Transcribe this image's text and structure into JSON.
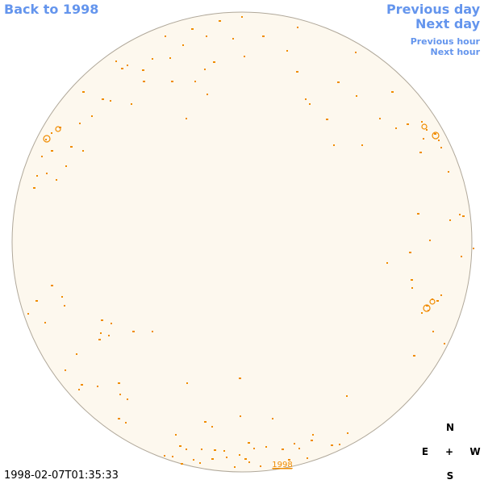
{
  "nav": {
    "back_label": "Back to 1998",
    "prev_day": "Previous day",
    "next_day": "Next day",
    "prev_hour": "Previous hour",
    "next_hour": "Next hour"
  },
  "disk": {
    "fill_color": "#fdf8ee",
    "stroke_color": "#b0a89a",
    "mark_color": "#f08c00",
    "year_label": "1998"
  },
  "compass": {
    "north": "N",
    "south": "S",
    "east": "E",
    "west": "W",
    "center": "+"
  },
  "timestamp": "1998-02-07T01:35:33"
}
